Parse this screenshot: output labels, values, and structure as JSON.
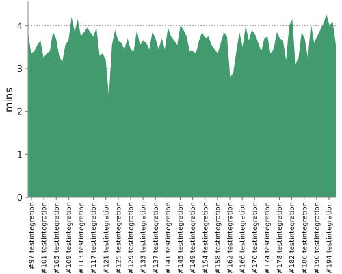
{
  "chart_data": {
    "type": "area",
    "ylabel": "mins",
    "xlabel": "",
    "ylim": [
      0,
      4.5
    ],
    "yticks": [
      0,
      1,
      2,
      3,
      4
    ],
    "grid": "horizontal-dashed",
    "color": "#429b6e",
    "x_tick_labels": [
      "#97 testintegration",
      "#101 testintegration",
      "#105 testintegration",
      "#109 testintegration",
      "#113 testintegration",
      "#117 testintegration",
      "#121 testintegration",
      "#125 testintegration",
      "#129 testintegration",
      "#133 testintegration",
      "#137 testintegration",
      "#141 testintegration",
      "#145 testintegration",
      "#149 testintegration",
      "#154 testintegration",
      "#158 testintegration",
      "#162 testintegration",
      "#166 testintegration",
      "#170 testintegration",
      "#174 testintegration",
      "#178 testintegration",
      "#182 testintegration",
      "#186 testintegration",
      "#190 testintegration",
      "#194 testintegration"
    ],
    "values": [
      3.85,
      3.35,
      3.4,
      3.55,
      3.65,
      3.25,
      3.35,
      3.4,
      3.85,
      3.7,
      3.3,
      3.15,
      3.55,
      3.65,
      4.2,
      3.85,
      4.15,
      3.75,
      3.85,
      3.95,
      3.85,
      3.75,
      3.95,
      3.3,
      3.35,
      3.2,
      2.35,
      3.55,
      3.9,
      3.65,
      3.6,
      3.45,
      3.7,
      3.45,
      3.4,
      3.9,
      3.55,
      3.65,
      3.6,
      3.45,
      3.85,
      3.7,
      3.45,
      3.7,
      3.45,
      3.95,
      3.75,
      3.65,
      3.55,
      4.0,
      3.9,
      3.75,
      3.4,
      3.4,
      3.35,
      3.65,
      3.85,
      3.7,
      3.75,
      3.55,
      3.45,
      3.35,
      3.6,
      3.85,
      3.75,
      2.8,
      2.9,
      3.4,
      3.85,
      3.5,
      4.0,
      3.65,
      3.9,
      3.8,
      3.6,
      3.4,
      3.7,
      3.75,
      3.35,
      3.45,
      3.85,
      3.7,
      3.65,
      3.2,
      4.0,
      4.15,
      3.1,
      3.25,
      3.85,
      3.7,
      3.25,
      4.05,
      3.6,
      3.75,
      3.9,
      4.05,
      4.25,
      4.0,
      4.1,
      3.55
    ]
  }
}
